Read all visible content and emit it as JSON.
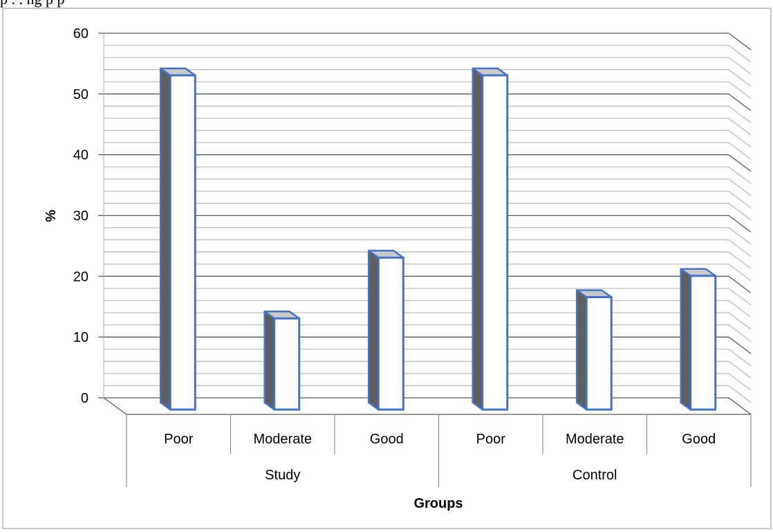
{
  "caption_fragment": "p  .   .   ng   p   p",
  "chart_data": {
    "type": "bar",
    "groups": [
      "Study",
      "Control"
    ],
    "categories": [
      "Poor",
      "Moderate",
      "Good",
      "Poor",
      "Moderate",
      "Good"
    ],
    "values": [
      55,
      15,
      25,
      55,
      18.5,
      22
    ],
    "xlabel": "Groups",
    "ylabel": "%",
    "ylim": [
      0,
      60
    ],
    "yticks": [
      0,
      10,
      20,
      30,
      40,
      50,
      60
    ],
    "grid": true,
    "style": "3d-column",
    "colors": {
      "bar_fill": "#ffffff",
      "bar_edge": "#4472c4",
      "bar_side": "#5f5f5f",
      "bar_top": "#c9c9c9",
      "grid_major": "#595959",
      "grid_minor": "#bfbfbf"
    }
  }
}
